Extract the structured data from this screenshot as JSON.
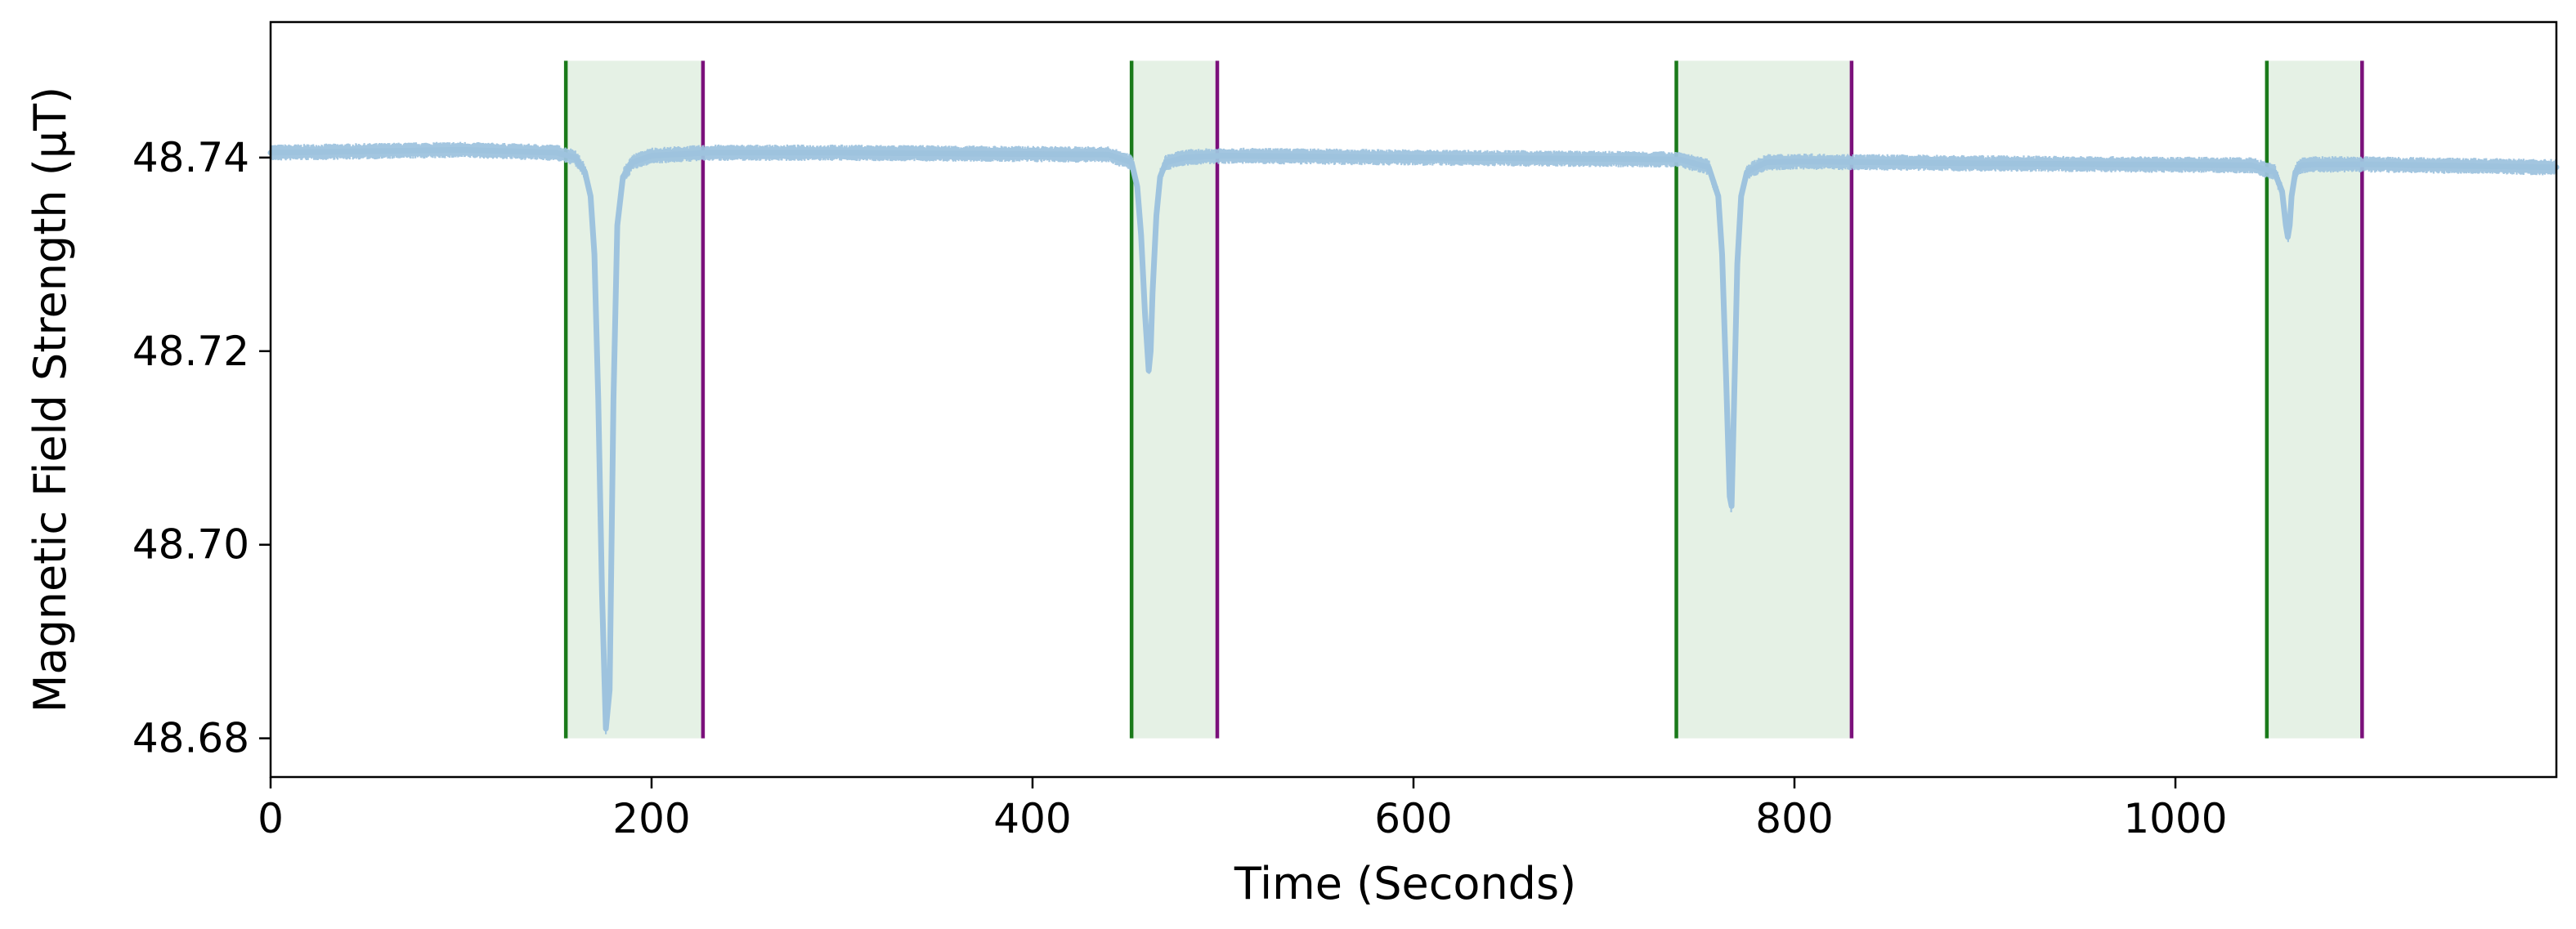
{
  "chart_data": {
    "type": "line",
    "title": "",
    "xlabel": "Time (Seconds)",
    "ylabel": "Magnetic Field Strength (μT)",
    "xlim": [
      0,
      1200
    ],
    "ylim": [
      48.676,
      48.754
    ],
    "x_ticks": [
      {
        "value": 0,
        "label": "0"
      },
      {
        "value": 200,
        "label": "200"
      },
      {
        "value": 400,
        "label": "400"
      },
      {
        "value": 600,
        "label": "600"
      },
      {
        "value": 800,
        "label": "800"
      },
      {
        "value": 1000,
        "label": "1000"
      }
    ],
    "y_ticks": [
      {
        "value": 48.68,
        "label": "48.68"
      },
      {
        "value": 48.7,
        "label": "48.70"
      },
      {
        "value": 48.72,
        "label": "48.72"
      },
      {
        "value": 48.74,
        "label": "48.74"
      }
    ],
    "grid": false,
    "legend": "none",
    "series": [
      {
        "color": "#9ec3de",
        "noise_band": 0.0017,
        "x": [
          0,
          100,
          150,
          160,
          165,
          168,
          170,
          172,
          174,
          176,
          178,
          180,
          182,
          185,
          190,
          200,
          230,
          300,
          440,
          452,
          455,
          457,
          459,
          461,
          462,
          463,
          465,
          467,
          470,
          480,
          500,
          600,
          740,
          755,
          760,
          762,
          764,
          766,
          767,
          768,
          770,
          772,
          775,
          785,
          800,
          900,
          1040,
          1052,
          1056,
          1058,
          1059,
          1060,
          1061,
          1063,
          1066,
          1075,
          1100,
          1200
        ],
        "y": [
          48.7405,
          48.7408,
          48.7405,
          48.74,
          48.7385,
          48.736,
          48.73,
          48.715,
          48.695,
          48.681,
          48.685,
          48.715,
          48.733,
          48.738,
          48.7395,
          48.7402,
          48.7405,
          48.7405,
          48.7403,
          48.7395,
          48.737,
          48.732,
          48.724,
          48.718,
          48.72,
          48.726,
          48.734,
          48.738,
          48.7395,
          48.74,
          48.7402,
          48.74,
          48.7398,
          48.739,
          48.736,
          48.73,
          48.718,
          48.705,
          48.704,
          48.712,
          48.729,
          48.736,
          48.7385,
          48.7395,
          48.7396,
          48.7394,
          48.7392,
          48.7385,
          48.7365,
          48.733,
          48.7318,
          48.733,
          48.736,
          48.7385,
          48.7392,
          48.7393,
          48.7393,
          48.739
        ]
      }
    ],
    "events": [
      {
        "start": 155,
        "end": 227
      },
      {
        "start": 452,
        "end": 497
      },
      {
        "start": 738,
        "end": 830
      },
      {
        "start": 1048,
        "end": 1098
      }
    ],
    "event_style": {
      "fill": "#e5f1e5",
      "start_line_color": "#1a7a1a",
      "end_line_color": "#7b117b",
      "y_from": 48.68,
      "y_to": 48.75
    }
  }
}
